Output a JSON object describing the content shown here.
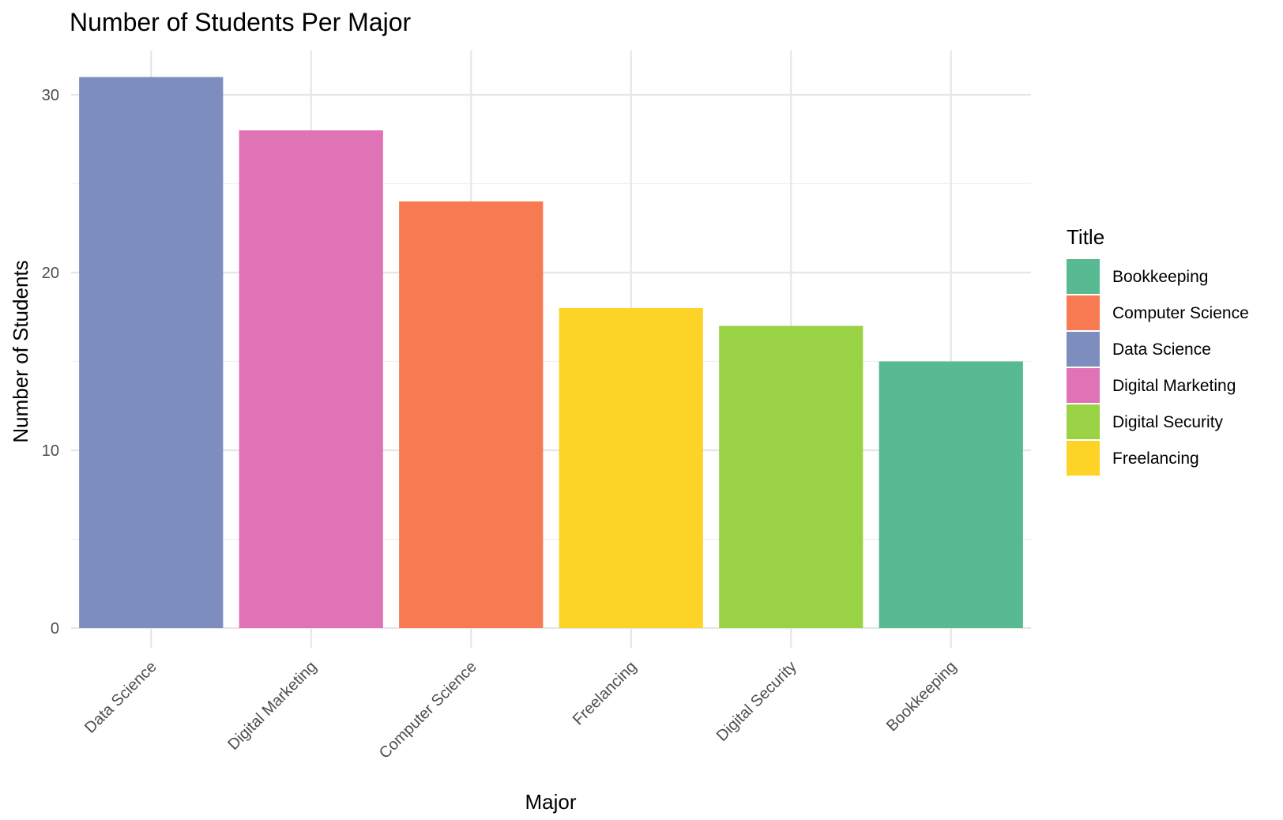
{
  "chart_data": {
    "type": "bar",
    "title": "Number of Students Per Major",
    "xlabel": "Major",
    "ylabel": "Number of Students",
    "categories": [
      "Data Science",
      "Digital Marketing",
      "Computer Science",
      "Freelancing",
      "Digital Security",
      "Bookkeeping"
    ],
    "values": [
      31,
      28,
      24,
      18,
      17,
      15
    ],
    "ylim": [
      0,
      32.5
    ],
    "yticks": [
      0,
      10,
      20,
      30
    ],
    "grid": true,
    "legend": {
      "title": "Title",
      "placement": "right",
      "entries": [
        {
          "label": "Bookkeeping",
          "color": "#57BA93"
        },
        {
          "label": "Computer Science",
          "color": "#F87A52"
        },
        {
          "label": "Data Science",
          "color": "#7C8DBE"
        },
        {
          "label": "Digital Marketing",
          "color": "#E073B5"
        },
        {
          "label": "Digital Security",
          "color": "#99D345"
        },
        {
          "label": "Freelancing",
          "color": "#FDD327"
        }
      ]
    },
    "colors": {
      "Data Science": "#7C8DBE",
      "Digital Marketing": "#E073B5",
      "Computer Science": "#F87A52",
      "Freelancing": "#FDD327",
      "Digital Security": "#99D345",
      "Bookkeeping": "#57BA93"
    }
  }
}
